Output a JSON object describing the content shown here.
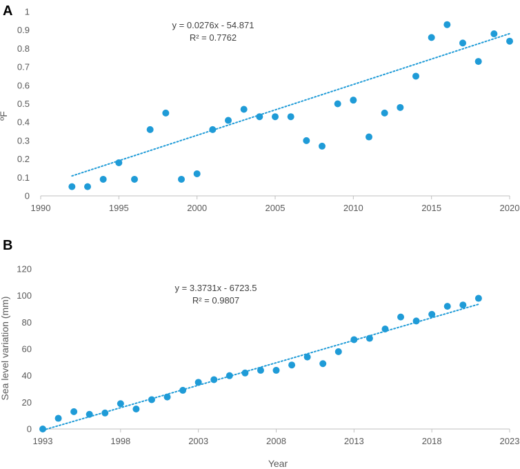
{
  "colors": {
    "point": "#1F9BD7",
    "trend": "#1F9BD7",
    "axis": "#BFBFBF",
    "text": "#595959"
  },
  "chart_data": [
    {
      "panel": "A",
      "type": "scatter",
      "xlabel": "",
      "ylabel": "ºF",
      "xlim": [
        1990,
        2020
      ],
      "ylim": [
        0,
        1
      ],
      "xticks": [
        1990,
        1995,
        2000,
        2005,
        2010,
        2015,
        2020
      ],
      "yticks": [
        0,
        0.1,
        0.2,
        0.3,
        0.4,
        0.5,
        0.6,
        0.7,
        0.8,
        0.9,
        1
      ],
      "ytick_labels": [
        "0",
        "0.1",
        "0.2",
        "0.3",
        "0.4",
        "0.5",
        "0.6",
        "0.7",
        "0.8",
        "0.9",
        "1"
      ],
      "x": [
        1992,
        1993,
        1994,
        1995,
        1996,
        1997,
        1998,
        1999,
        2000,
        2001,
        2002,
        2003,
        2004,
        2005,
        2006,
        2007,
        2008,
        2009,
        2010,
        2011,
        2012,
        2013,
        2014,
        2015,
        2016,
        2017,
        2018,
        2019,
        2020
      ],
      "y": [
        0.05,
        0.05,
        0.09,
        0.18,
        0.09,
        0.36,
        0.45,
        0.09,
        0.12,
        0.36,
        0.41,
        0.47,
        0.43,
        0.43,
        0.43,
        0.3,
        0.27,
        0.5,
        0.52,
        0.32,
        0.45,
        0.48,
        0.65,
        0.86,
        0.93,
        0.83,
        0.73,
        0.88,
        0.84
      ],
      "trendline": {
        "slope": 0.0276,
        "intercept": -54.871,
        "x_range": [
          1992,
          2020
        ]
      },
      "equation": "y = 0.0276x - 54.871",
      "r2_label": "R² = 0.7762"
    },
    {
      "panel": "B",
      "type": "scatter",
      "xlabel": "Year",
      "ylabel": "Sea level variation (mm)",
      "xlim": [
        1993,
        2023
      ],
      "ylim": [
        0,
        120
      ],
      "xticks": [
        1993,
        1998,
        2003,
        2008,
        2013,
        2018,
        2023
      ],
      "yticks": [
        0,
        20,
        40,
        60,
        80,
        100,
        120
      ],
      "ytick_labels": [
        "0",
        "20",
        "40",
        "60",
        "80",
        "100",
        "120"
      ],
      "x": [
        1993,
        1994,
        1995,
        1996,
        1997,
        1998,
        1999,
        2000,
        2001,
        2002,
        2003,
        2004,
        2005,
        2006,
        2007,
        2008,
        2009,
        2010,
        2011,
        2012,
        2013,
        2014,
        2015,
        2016,
        2017,
        2018,
        2019,
        2020,
        2021
      ],
      "y": [
        0,
        8,
        13,
        11,
        12,
        19,
        15,
        22,
        24,
        29,
        35,
        37,
        40,
        42,
        44,
        44,
        48,
        54,
        49,
        58,
        67,
        68,
        75,
        84,
        81,
        86,
        92,
        93,
        98
      ],
      "trendline": {
        "slope": 3.3731,
        "intercept": -6723.5,
        "x_range": [
          1993,
          2021
        ]
      },
      "equation": "y = 3.3731x - 6723.5",
      "r2_label": "R² = 0.9807"
    }
  ]
}
